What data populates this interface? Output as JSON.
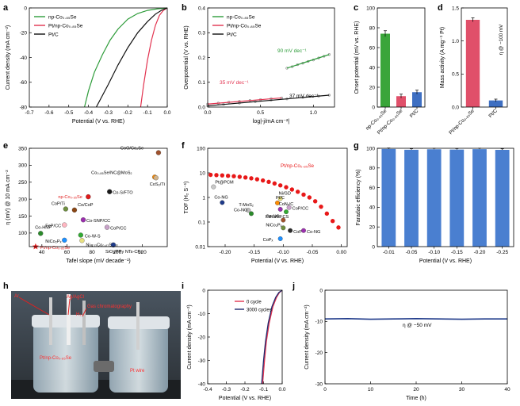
{
  "panel_letters": {
    "a": "a",
    "b": "b",
    "c": "c",
    "d": "d",
    "e": "e",
    "f": "f",
    "g": "g",
    "h": "h",
    "i": "i",
    "j": "j"
  },
  "colors": {
    "green": "#2e9c3a",
    "red": "#e2324f",
    "black": "#111111",
    "bar_green": "#3aa53a",
    "bar_pink": "#e0506a",
    "bar_blue": "#3e6fc2",
    "bar_g": "#4a7fd0",
    "curve_red": "#e81818"
  },
  "photo": {
    "labels": {
      "ar": "Ar",
      "ref": "Ag/AgCl",
      "gc": "Gas chromatography",
      "h2": "H₂",
      "we": "Pt/np-Co₀.₈₅Se",
      "ce": "Pt wire"
    },
    "icon": "electrochemical-cell-photo"
  },
  "chart_data": [
    {
      "id": "a",
      "type": "line",
      "xlabel": "Potential (V vs. RHE)",
      "ylabel": "Current density (mA cm⁻²)",
      "xlim": [
        -0.7,
        0.0
      ],
      "ylim": [
        -80,
        0
      ],
      "xticks": [
        "-0.7",
        "-0.6",
        "-0.5",
        "-0.4",
        "-0.3",
        "-0.2",
        "-0.1",
        "0.0"
      ],
      "yticks": [
        "-80",
        "-60",
        "-40",
        "-20",
        "0"
      ],
      "legend_position": "top-left",
      "series": [
        {
          "name": "np-Co₀.₈₅Se",
          "color": "#2e9c3a",
          "x": [
            -0.42,
            -0.4,
            -0.37,
            -0.33,
            -0.29,
            -0.25,
            -0.2,
            -0.15,
            -0.1,
            -0.05,
            0.0
          ],
          "y": [
            -80,
            -67,
            -52,
            -38,
            -26,
            -17,
            -9,
            -4.5,
            -2,
            -0.7,
            0
          ]
        },
        {
          "name": "Pt/np-Co₀.₈₅Se",
          "color": "#e2324f",
          "x": [
            -0.135,
            -0.12,
            -0.1,
            -0.08,
            -0.06,
            -0.04,
            -0.02,
            0.0
          ],
          "y": [
            -80,
            -62,
            -42,
            -26,
            -14,
            -6,
            -2,
            0
          ]
        },
        {
          "name": "Pt/C",
          "color": "#111111",
          "x": [
            -0.36,
            -0.3,
            -0.25,
            -0.2,
            -0.15,
            -0.1,
            -0.06,
            -0.03,
            0.0
          ],
          "y": [
            -80,
            -62,
            -46,
            -32,
            -20,
            -11,
            -5,
            -2,
            0
          ]
        }
      ]
    },
    {
      "id": "b",
      "type": "scatter",
      "xlabel": "log|-j/mA cm⁻²|",
      "ylabel": "Overpotential (V vs. RHE)",
      "xlim": [
        0.0,
        1.2
      ],
      "ylim": [
        0.0,
        0.4
      ],
      "xticks": [
        "0.0",
        "0.5",
        "1.0"
      ],
      "yticks": [
        "0.0",
        "0.1",
        "0.2",
        "0.3",
        "0.4"
      ],
      "legend_position": "top-left",
      "annotations": [
        "90 mV dec⁻¹",
        "35 mV dec⁻¹",
        "37 mV dec⁻¹"
      ],
      "series": [
        {
          "name": "np-Co₀.₈₅Se",
          "color": "#2e9c3a",
          "x": [
            0.75,
            0.8,
            0.85,
            0.9,
            0.95,
            1.0,
            1.05,
            1.1,
            1.15
          ],
          "y": [
            0.157,
            0.163,
            0.171,
            0.177,
            0.184,
            0.19,
            0.198,
            0.205,
            0.212
          ]
        },
        {
          "name": "Pt/np-Co₀.₈₅Se",
          "color": "#e2324f",
          "x": [
            0.0,
            0.1,
            0.2,
            0.3,
            0.4,
            0.5,
            0.6,
            0.7
          ],
          "y": [
            0.012,
            0.016,
            0.02,
            0.023,
            0.027,
            0.03,
            0.034,
            0.037
          ]
        },
        {
          "name": "Pt/C",
          "color": "#111111",
          "x": [
            0.0,
            0.15,
            0.3,
            0.45,
            0.6,
            0.75,
            0.9,
            1.05,
            1.15
          ],
          "y": [
            0.005,
            0.011,
            0.016,
            0.022,
            0.028,
            0.033,
            0.039,
            0.044,
            0.048
          ]
        }
      ]
    },
    {
      "id": "c",
      "type": "bar",
      "ylabel": "Onset potential (mV vs. RHE)",
      "ylim": [
        0,
        100
      ],
      "yticks": [
        "0",
        "20",
        "40",
        "60",
        "80",
        "100"
      ],
      "categories": [
        "np-Co₀.₈₅Se",
        "Pt/np-Co₀.₈₅Se",
        "Pt/C"
      ],
      "values": [
        74,
        11,
        15
      ],
      "errors": [
        3,
        2,
        2
      ],
      "bar_colors": [
        "#3aa53a",
        "#e0506a",
        "#3e6fc2"
      ]
    },
    {
      "id": "d",
      "type": "bar",
      "ylabel": "Mass activity (A mg⁻¹ Pt)",
      "ylim": [
        0,
        1.5
      ],
      "yticks": [
        "0.0",
        "0.5",
        "1.0",
        "1.5"
      ],
      "annotation": "η @ −100 mV",
      "categories": [
        "Pt/np-Co₀.₈₅Se",
        "Pt/C"
      ],
      "values": [
        1.32,
        0.1
      ],
      "errors": [
        0.03,
        0.02
      ],
      "bar_colors": [
        "#e0506a",
        "#3e6fc2"
      ]
    },
    {
      "id": "e",
      "type": "scatter",
      "xlabel": "Tafel slope (mV decade⁻¹)",
      "ylabel": "η (mV) @ 10 mA cm⁻²",
      "xlim": [
        30,
        140
      ],
      "ylim": [
        60,
        350
      ],
      "xticks": [
        "40",
        "60",
        "80",
        "100",
        "120"
      ],
      "yticks": [
        "100",
        "150",
        "200",
        "250",
        "300",
        "350"
      ],
      "points": [
        {
          "label": "CoO/Co₂Se",
          "x": 133,
          "y": 337,
          "color": "#a0522d"
        },
        {
          "label": "Co₀.₈₅Se/NC@MoS₂",
          "x": 130,
          "y": 265,
          "color": "#ff8c00"
        },
        {
          "label": "CoS₂/Ti",
          "x": 131,
          "y": 263,
          "color": "#d2b48c"
        },
        {
          "label": "Co-S/FTO",
          "x": 94,
          "y": 222,
          "color": "#1a1a1a"
        },
        {
          "label": "np-Co₀.₈₅Se",
          "x": 77,
          "y": 207,
          "color": "#e01b1b"
        },
        {
          "label": "CoP/Ti",
          "x": 59,
          "y": 171,
          "color": "#6f8f40"
        },
        {
          "label": "Co/CoP",
          "x": 66,
          "y": 168,
          "color": "#8b4513"
        },
        {
          "label": "Co-SNP/CC",
          "x": 73,
          "y": 139,
          "color": "#9b2fae"
        },
        {
          "label": "FeP/CC",
          "x": 58,
          "y": 124,
          "color": "#ffb6c1"
        },
        {
          "label": "CoP/CC",
          "x": 92,
          "y": 117,
          "color": "#c8a2c8"
        },
        {
          "label": "Co-HNP",
          "x": 39,
          "y": 99,
          "color": "#2a8a2a"
        },
        {
          "label": "NiCo₂Pₓ",
          "x": 58,
          "y": 79,
          "color": "#1e90ff"
        },
        {
          "label": "Co-W-S",
          "x": 71,
          "y": 94,
          "color": "#33aa33"
        },
        {
          "label": "Ni₀.₃₃Co₀.₆₇Se₂",
          "x": 72,
          "y": 78,
          "color": "#e8e080"
        },
        {
          "label": "SiO₂/PPy NTs-CFs",
          "x": 97,
          "y": 65,
          "color": "#1e3a8a"
        },
        {
          "label": "Pt/np-Co₀.₈₅Se",
          "x": 35,
          "y": 55,
          "color": "#e01b1b",
          "marker": "star"
        }
      ]
    },
    {
      "id": "f",
      "type": "scatter",
      "xlabel": "Potential (V vs. RHE)",
      "ylabel": "TOF (H₂ S⁻¹)",
      "xlim": [
        -0.23,
        0.01
      ],
      "ylim_log": [
        0.01,
        100
      ],
      "xticks": [
        "-0.20",
        "-0.15",
        "-0.10",
        "-0.05",
        "0.00"
      ],
      "yticks": [
        "0.01",
        "0.1",
        "1",
        "10",
        "100"
      ],
      "curve": {
        "name": "Pt/np-Co₀.₈₅Se",
        "color": "#e81818",
        "x": [
          -0.225,
          -0.215,
          -0.205,
          -0.195,
          -0.185,
          -0.175,
          -0.165,
          -0.155,
          -0.145,
          -0.135,
          -0.125,
          -0.115,
          -0.105,
          -0.095,
          -0.085,
          -0.075,
          -0.065,
          -0.055,
          -0.045,
          -0.035,
          -0.025,
          -0.015,
          -0.005
        ],
        "y": [
          8.3,
          8.1,
          7.9,
          7.6,
          7.3,
          6.9,
          6.5,
          6.0,
          5.5,
          4.9,
          4.3,
          3.7,
          3.1,
          2.6,
          2.1,
          1.7,
          1.3,
          1.0,
          0.7,
          0.42,
          0.22,
          0.11,
          0.06
        ]
      },
      "points": [
        {
          "label": "Pt@PCM",
          "x": -0.22,
          "y": 2.7,
          "color": "#c8c8c8"
        },
        {
          "label": "Co-NG",
          "x": -0.205,
          "y": 0.62,
          "color": "#1e3a8a"
        },
        {
          "label": "T-MoS₂",
          "x": -0.16,
          "y": 0.3,
          "color": "#bdbdbd"
        },
        {
          "label": "Co-NG",
          "x": -0.155,
          "y": 0.22,
          "color": "#2a8a2a"
        },
        {
          "label": "Ni/GD",
          "x": -0.105,
          "y": 0.9,
          "color": "#e8e080"
        },
        {
          "label": "Pt/C",
          "x": -0.11,
          "y": 0.6,
          "color": "#ff8c00"
        },
        {
          "label": "CoNₓ/C",
          "x": -0.105,
          "y": 0.33,
          "color": "#9b2fae"
        },
        {
          "label": "CoP/CC",
          "x": -0.09,
          "y": 0.39,
          "color": "#c8a2c8"
        },
        {
          "label": "PtRu/RFCS",
          "x": -0.095,
          "y": 0.26,
          "color": "#33aa33"
        },
        {
          "label": "Co-NG",
          "x": -0.1,
          "y": 0.12,
          "color": "#a0522d"
        },
        {
          "label": "NiCo₂Pₓ",
          "x": -0.1,
          "y": 0.058,
          "color": "#6f8f40"
        },
        {
          "label": "CoP",
          "x": -0.088,
          "y": 0.045,
          "color": "#2a2a2a"
        },
        {
          "label": "Co-NG",
          "x": -0.065,
          "y": 0.045,
          "color": "#9b2fae"
        },
        {
          "label": "CoPₓ",
          "x": -0.105,
          "y": 0.021,
          "color": "#1e90ff"
        }
      ]
    },
    {
      "id": "g",
      "type": "bar",
      "xlabel": "Potential (V vs. RHE)",
      "ylabel": "Faradaic efficiency (%)",
      "ylim": [
        0,
        100
      ],
      "yticks": [
        "0",
        "20",
        "40",
        "60",
        "80",
        "100"
      ],
      "categories": [
        "-0.01",
        "-0.05",
        "-0.10",
        "-0.15",
        "-0.20",
        "-0.25"
      ],
      "values": [
        99.3,
        98.5,
        99.0,
        98.7,
        99.1,
        98.4
      ],
      "errors": [
        1,
        1,
        1,
        1,
        1,
        1
      ],
      "bar_color": "#4a7fd0"
    },
    {
      "id": "i",
      "type": "line",
      "xlabel": "Potential (V vs. RHE)",
      "ylabel": "Current density (mA cm⁻²)",
      "xlim": [
        -0.4,
        0.0
      ],
      "ylim": [
        -40,
        0
      ],
      "xticks": [
        "-0.4",
        "-0.3",
        "-0.2",
        "-0.1",
        "0.0"
      ],
      "yticks": [
        "-40",
        "-30",
        "-20",
        "-10",
        "0"
      ],
      "legend_position": "top-right",
      "series": [
        {
          "name": "0 cycle",
          "color": "#e2324f",
          "x": [
            -0.105,
            -0.095,
            -0.085,
            -0.07,
            -0.05,
            -0.03,
            -0.015,
            0.0
          ],
          "y": [
            -40,
            -30,
            -22,
            -14,
            -7,
            -3,
            -1,
            0
          ]
        },
        {
          "name": "3000 cycles",
          "color": "#1f2a6e",
          "x": [
            -0.11,
            -0.1,
            -0.09,
            -0.075,
            -0.055,
            -0.035,
            -0.018,
            0.0
          ],
          "y": [
            -40,
            -30,
            -22,
            -14,
            -7,
            -3,
            -1,
            0
          ]
        }
      ]
    },
    {
      "id": "j",
      "type": "line",
      "xlabel": "Time (h)",
      "ylabel": "Current density (mA cm⁻²)",
      "xlim": [
        0,
        40
      ],
      "ylim": [
        -30,
        0
      ],
      "xticks": [
        "0",
        "10",
        "20",
        "30",
        "40"
      ],
      "yticks": [
        "-30",
        "-20",
        "-10",
        "0"
      ],
      "annotation": "η @ −50 mV",
      "series": [
        {
          "name": "",
          "color": "#1f3a8a",
          "x": [
            0,
            5,
            10,
            15,
            20,
            25,
            30,
            35,
            40
          ],
          "y": [
            -9.2,
            -9.1,
            -9.3,
            -9.2,
            -9.1,
            -9.2,
            -9.3,
            -9.2,
            -9.2
          ]
        }
      ]
    }
  ]
}
